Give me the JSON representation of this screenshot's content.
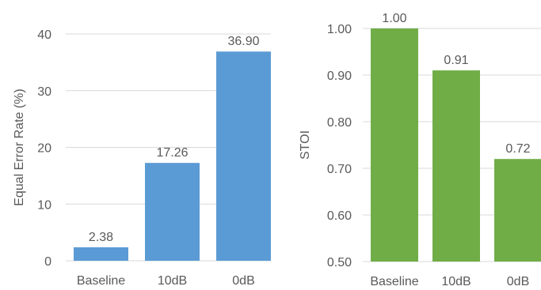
{
  "chart_data": [
    {
      "type": "bar",
      "categories": [
        "Baseline",
        "10dB",
        "0dB"
      ],
      "values": [
        2.38,
        17.26,
        36.9
      ],
      "data_labels": [
        "2.38",
        "17.26",
        "36.90"
      ],
      "ylabel": "Equal Error Rate (%)",
      "ylim": [
        0,
        40
      ],
      "yticks": [
        "0",
        "10",
        "20",
        "30",
        "40"
      ],
      "grid": true,
      "color": "#5b9bd5"
    },
    {
      "type": "bar",
      "categories": [
        "Baseline",
        "10dB",
        "0dB"
      ],
      "values": [
        1.0,
        0.91,
        0.72
      ],
      "data_labels": [
        "1.00",
        "0.91",
        "0.72"
      ],
      "ylabel": "STOI",
      "ylim": [
        0.5,
        1.0
      ],
      "yticks": [
        "0.50",
        "0.60",
        "0.70",
        "0.80",
        "0.90",
        "1.00"
      ],
      "grid": true,
      "color": "#70ad47"
    }
  ]
}
